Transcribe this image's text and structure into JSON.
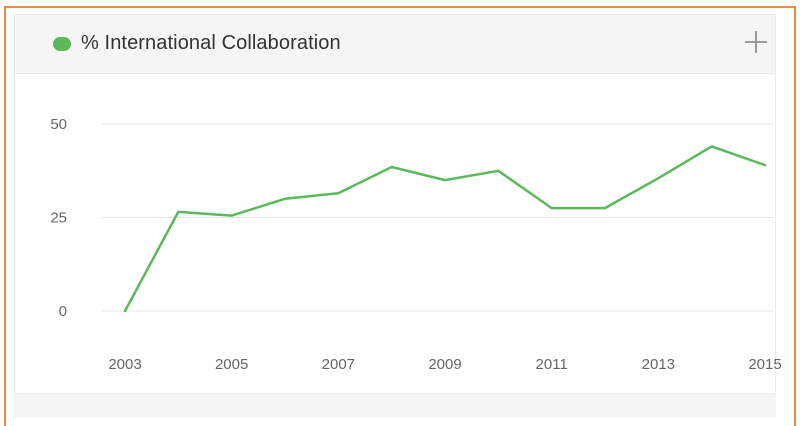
{
  "panel": {
    "title": "% International Collaboration",
    "add_icon": "plus-icon"
  },
  "colors": {
    "frame_border": "#e98a4a",
    "series": "#5cb85c",
    "grid": "#e6e6e6",
    "header_bg": "#f5f5f6"
  },
  "chart_data": {
    "type": "line",
    "title": "% International Collaboration",
    "xlabel": "",
    "ylabel": "",
    "x": [
      2003,
      2004,
      2005,
      2006,
      2007,
      2008,
      2009,
      2010,
      2011,
      2012,
      2013,
      2014,
      2015
    ],
    "series": [
      {
        "name": "% International Collaboration",
        "values": [
          0,
          26.5,
          25.5,
          30,
          31.5,
          38.5,
          35,
          37.5,
          27.5,
          27.5,
          35.5,
          44,
          39
        ]
      }
    ],
    "y_ticks": [
      "50",
      "25",
      "0"
    ],
    "x_ticks": [
      "2003",
      "2005",
      "2007",
      "2009",
      "2011",
      "2013",
      "2015"
    ],
    "ylim": [
      0,
      50
    ],
    "xlim": [
      2003,
      2015
    ],
    "grid": true,
    "legend": "top-left"
  }
}
